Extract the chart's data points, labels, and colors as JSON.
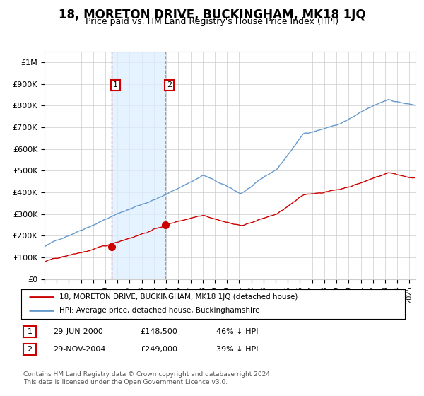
{
  "title": "18, MORETON DRIVE, BUCKINGHAM, MK18 1JQ",
  "subtitle": "Price paid vs. HM Land Registry's House Price Index (HPI)",
  "background_color": "#ffffff",
  "plot_bg_color": "#ffffff",
  "grid_color": "#cccccc",
  "hpi_color": "#6699cc",
  "price_color": "#cc0000",
  "sale1_date_num": 2000.49,
  "sale1_price": 148500,
  "sale1_label": "1",
  "sale2_date_num": 2004.91,
  "sale2_price": 249000,
  "sale2_label": "2",
  "legend1_label": "18, MORETON DRIVE, BUCKINGHAM, MK18 1JQ (detached house)",
  "legend2_label": "HPI: Average price, detached house, Buckinghamshire",
  "table_row1": [
    "1",
    "29-JUN-2000",
    "£148,500",
    "46% ↓ HPI"
  ],
  "table_row2": [
    "2",
    "29-NOV-2004",
    "£249,000",
    "39% ↓ HPI"
  ],
  "footer": "Contains HM Land Registry data © Crown copyright and database right 2024.\nThis data is licensed under the Open Government Licence v3.0.",
  "xmin": 1995.0,
  "xmax": 2025.5,
  "ymin": 0,
  "ymax": 1050000
}
